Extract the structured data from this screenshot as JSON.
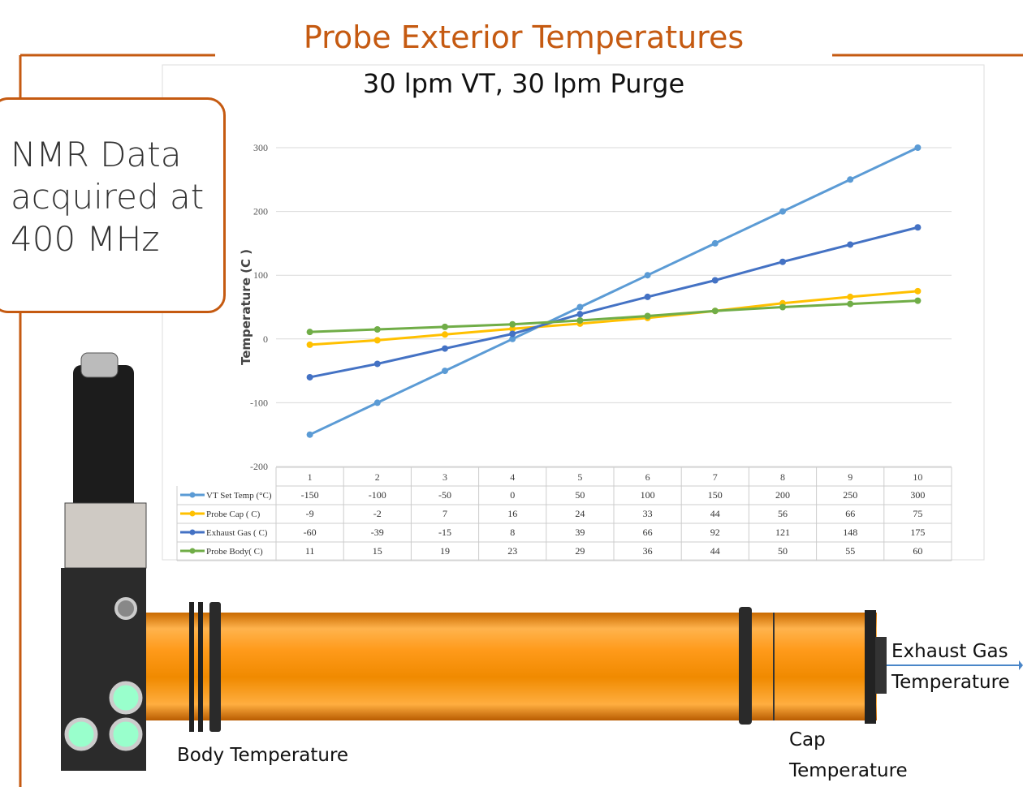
{
  "slide": {
    "title": "Probe Exterior Temperatures",
    "subtitle": "30 lpm VT, 30 lpm Purge",
    "callout": "NMR Data acquired at 400 MHz",
    "exhaust_label": "Exhaust Gas Temperature",
    "body_label": "Body Temperature",
    "cap_label": "Cap Temperature"
  },
  "chart_data": {
    "type": "line",
    "y_label": "Temperature (C )",
    "categories": [
      "1",
      "2",
      "3",
      "4",
      "5",
      "6",
      "7",
      "8",
      "9",
      "10"
    ],
    "series": [
      {
        "name": "VT Set Temp (°C)",
        "color": "#5b9bd5",
        "values": [
          -150,
          -100,
          -50,
          0,
          50,
          100,
          150,
          200,
          250,
          300
        ]
      },
      {
        "name": "Probe Cap  ( C)",
        "color": "#ffc000",
        "values": [
          -9,
          -2,
          7,
          16,
          24,
          33,
          44,
          56,
          66,
          75
        ]
      },
      {
        "name": "Exhaust Gas ( C)",
        "color": "#4472c4",
        "values": [
          -60,
          -39,
          -15,
          8,
          39,
          66,
          92,
          121,
          148,
          175
        ]
      },
      {
        "name": "Probe Body( C)",
        "color": "#70ad47",
        "values": [
          11,
          15,
          19,
          23,
          29,
          36,
          44,
          50,
          55,
          60
        ]
      }
    ],
    "ylim": [
      -200,
      300
    ],
    "yticks": [
      -200,
      -100,
      0,
      100,
      200,
      300
    ],
    "grid": true
  }
}
